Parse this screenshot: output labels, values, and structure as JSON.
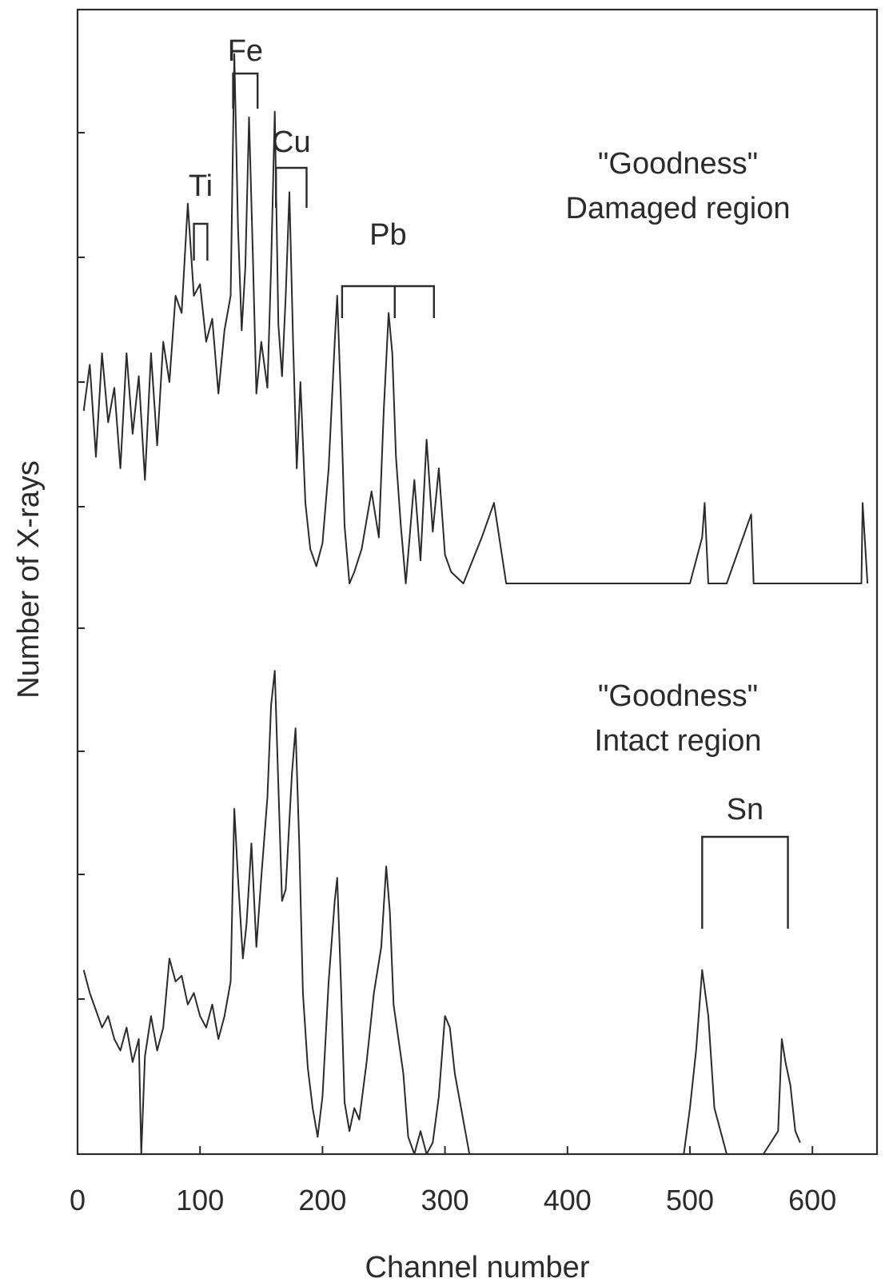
{
  "chart_data": {
    "type": "line",
    "xlabel": "Channel number",
    "ylabel": "Number of X-rays",
    "xlim": [
      0,
      650
    ],
    "x_ticks": [
      "0",
      "100",
      "200",
      "300",
      "400",
      "500",
      "600"
    ],
    "y_tick_labels": "none",
    "grid": false,
    "legend": "none",
    "panels": [
      {
        "name": "damaged",
        "label_line1": "\"Goodness\"",
        "label_line2": "Damaged region",
        "series": {
          "x": [
            5,
            10,
            15,
            20,
            25,
            30,
            35,
            40,
            45,
            50,
            55,
            60,
            65,
            70,
            75,
            80,
            85,
            90,
            95,
            100,
            105,
            110,
            115,
            120,
            125,
            128,
            131,
            134,
            137,
            140,
            143,
            146,
            150,
            155,
            158,
            161,
            164,
            167,
            170,
            173,
            176,
            179,
            182,
            186,
            190,
            195,
            200,
            205,
            210,
            212,
            215,
            218,
            222,
            226,
            232,
            240,
            246,
            250,
            254,
            257,
            260,
            264,
            268,
            275,
            280,
            285,
            290,
            295,
            300,
            305,
            315,
            330,
            340,
            350,
            360,
            380,
            400,
            420,
            440,
            460,
            480,
            500,
            510,
            512,
            515,
            530,
            550,
            552,
            570,
            590,
            620,
            640,
            641,
            645
          ],
          "y": [
            0.3,
            0.38,
            0.22,
            0.4,
            0.28,
            0.34,
            0.2,
            0.4,
            0.26,
            0.36,
            0.18,
            0.4,
            0.24,
            0.42,
            0.35,
            0.5,
            0.47,
            0.66,
            0.5,
            0.52,
            0.42,
            0.46,
            0.33,
            0.44,
            0.5,
            0.92,
            0.62,
            0.44,
            0.55,
            0.81,
            0.58,
            0.33,
            0.42,
            0.34,
            0.55,
            0.82,
            0.45,
            0.36,
            0.5,
            0.68,
            0.42,
            0.2,
            0.35,
            0.14,
            0.06,
            0.03,
            0.07,
            0.2,
            0.42,
            0.5,
            0.32,
            0.1,
            0.0,
            0.02,
            0.06,
            0.16,
            0.08,
            0.3,
            0.47,
            0.4,
            0.22,
            0.1,
            0.0,
            0.18,
            0.04,
            0.25,
            0.09,
            0.2,
            0.05,
            0.02,
            0.0,
            0.08,
            0.14,
            0.0,
            0.0,
            0.0,
            0.0,
            0.0,
            0.0,
            0.0,
            0.0,
            0.0,
            0.08,
            0.14,
            0.0,
            0.0,
            0.12,
            0.0,
            0.0,
            0.0,
            0.0,
            0.0,
            0.14,
            0.0
          ]
        }
      },
      {
        "name": "intact",
        "label_line1": "\"Goodness\"",
        "label_line2": "Intact region",
        "series": {
          "x": [
            5,
            10,
            15,
            20,
            25,
            30,
            35,
            40,
            45,
            50,
            52,
            55,
            60,
            65,
            70,
            75,
            80,
            85,
            90,
            95,
            100,
            105,
            110,
            115,
            120,
            125,
            128,
            131,
            135,
            138,
            142,
            146,
            150,
            155,
            158,
            161,
            164,
            167,
            170,
            175,
            178,
            181,
            184,
            188,
            192,
            196,
            200,
            205,
            210,
            212,
            215,
            218,
            222,
            226,
            230,
            236,
            242,
            248,
            252,
            255,
            258,
            262,
            266,
            270,
            275,
            280,
            285,
            290,
            295,
            300,
            304,
            308,
            320,
            340,
            360,
            380,
            400,
            415,
            430,
            450,
            470,
            485,
            495,
            500,
            505,
            510,
            515,
            520,
            530,
            545,
            560,
            572,
            575,
            578,
            582,
            586,
            590
          ],
          "y": [
            0.32,
            0.28,
            0.25,
            0.22,
            0.24,
            0.2,
            0.18,
            0.22,
            0.16,
            0.2,
            0.0,
            0.17,
            0.24,
            0.18,
            0.22,
            0.34,
            0.3,
            0.31,
            0.26,
            0.28,
            0.24,
            0.22,
            0.26,
            0.2,
            0.24,
            0.3,
            0.6,
            0.48,
            0.34,
            0.4,
            0.54,
            0.36,
            0.48,
            0.62,
            0.78,
            0.84,
            0.64,
            0.44,
            0.46,
            0.66,
            0.74,
            0.54,
            0.28,
            0.15,
            0.08,
            0.03,
            0.1,
            0.3,
            0.44,
            0.48,
            0.3,
            0.09,
            0.04,
            0.08,
            0.06,
            0.16,
            0.28,
            0.36,
            0.5,
            0.42,
            0.26,
            0.2,
            0.14,
            0.03,
            0.0,
            0.04,
            0.0,
            0.02,
            0.1,
            0.24,
            0.22,
            0.14,
            0.0,
            0.0,
            0.0,
            0.0,
            0.0,
            0.0,
            0.0,
            0.0,
            0.0,
            0.0,
            0.0,
            0.08,
            0.18,
            0.32,
            0.24,
            0.08,
            0.0,
            0.0,
            0.0,
            0.04,
            0.2,
            0.16,
            0.12,
            0.04,
            0.02
          ]
        }
      }
    ],
    "element_labels": [
      {
        "text": "Fe",
        "panel": "damaged",
        "channels": [
          127,
          147
        ]
      },
      {
        "text": "Ti",
        "panel": "damaged",
        "channels": [
          95,
          106
        ]
      },
      {
        "text": "Cu",
        "panel": "damaged",
        "channels": [
          162,
          187
        ]
      },
      {
        "text": "Pb",
        "panel": "damaged",
        "channels": [
          216,
          259,
          291
        ]
      },
      {
        "text": "Sn",
        "panel": "intact",
        "channels": [
          510,
          580
        ]
      }
    ]
  }
}
